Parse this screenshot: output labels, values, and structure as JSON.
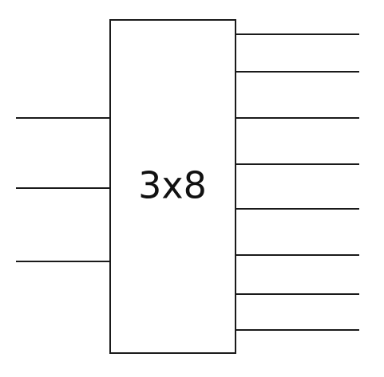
{
  "decoder": {
    "label": "3x8",
    "input_count": 3,
    "output_count": 8
  }
}
